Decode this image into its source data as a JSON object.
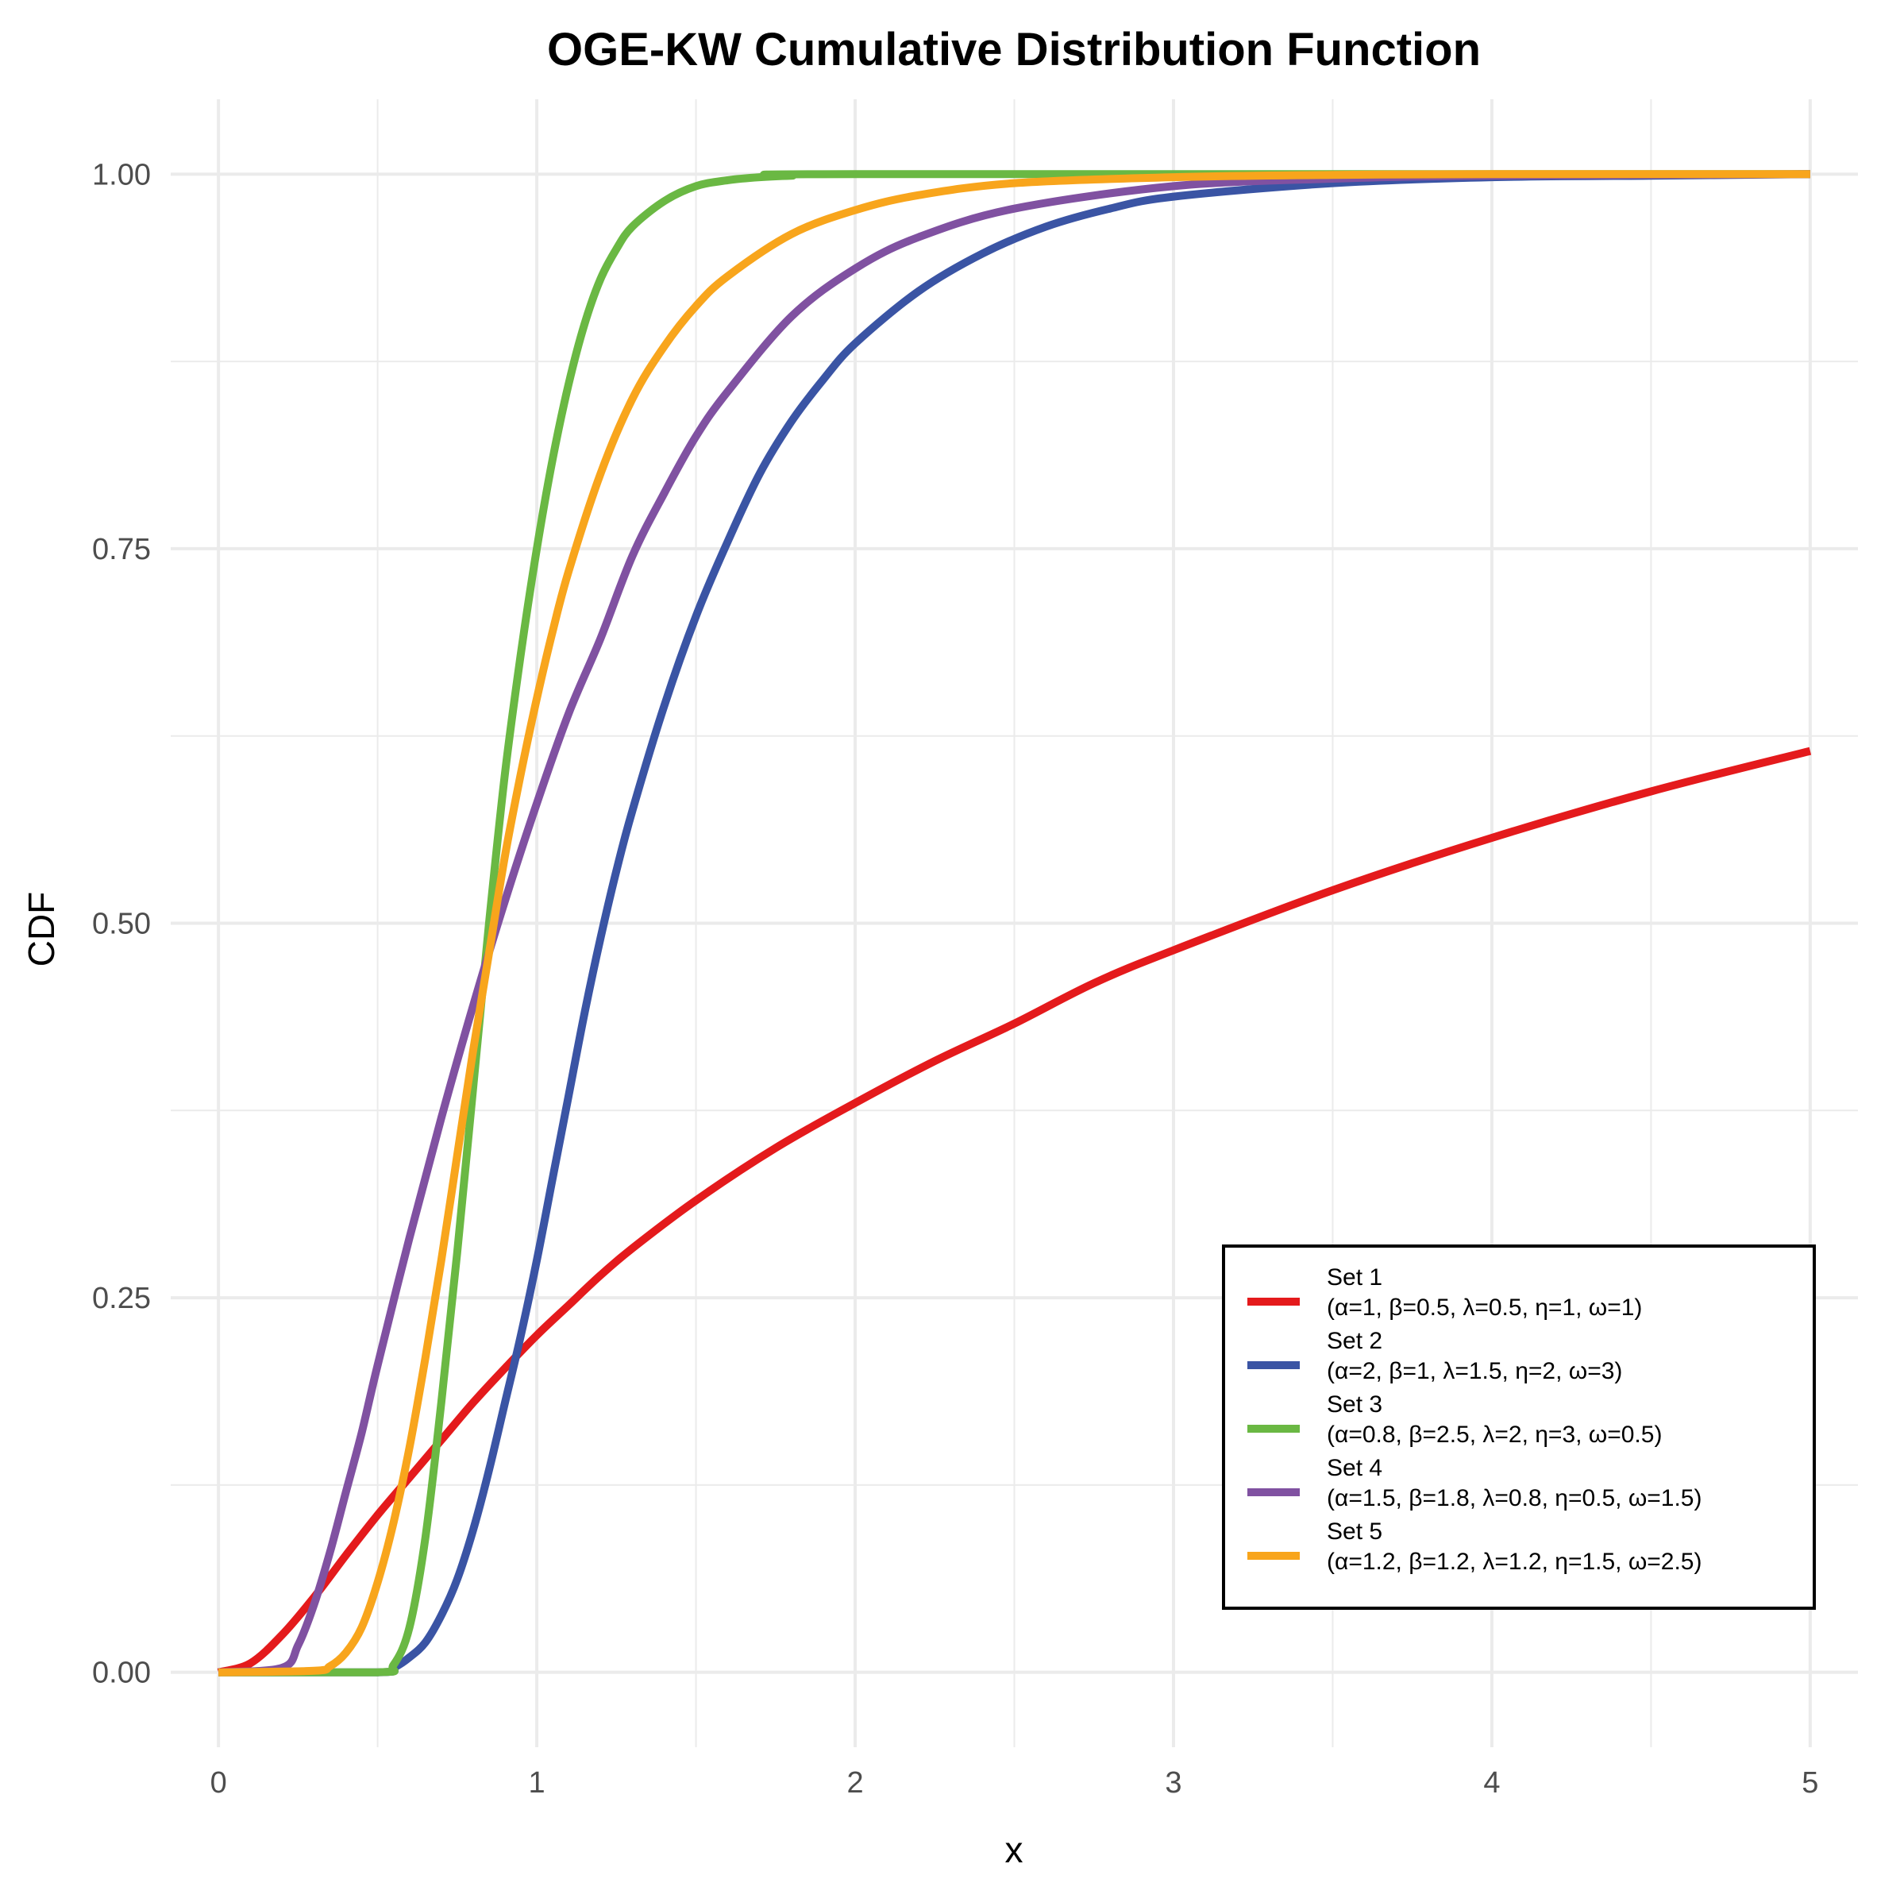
{
  "chart_data": {
    "type": "line",
    "title": "OGE-KW Cumulative Distribution Function",
    "xlabel": "x",
    "ylabel": "CDF",
    "xlim": [
      -0.15,
      5.15
    ],
    "ylim": [
      -0.05,
      1.05
    ],
    "x_ticks": [
      0,
      1,
      2,
      3,
      4,
      5
    ],
    "x_tick_labels": [
      "0",
      "1",
      "2",
      "3",
      "4",
      "5"
    ],
    "x_minor_ticks": [
      0.5,
      1.5,
      2.5,
      3.5,
      4.5
    ],
    "y_ticks": [
      0,
      0.25,
      0.5,
      0.75,
      1
    ],
    "y_tick_labels": [
      "0.00",
      "0.25",
      "0.50",
      "0.75",
      "1.00"
    ],
    "y_minor_ticks": [
      0.125,
      0.375,
      0.625,
      0.875
    ],
    "grid": true,
    "legend_position": "bottom-right",
    "series": [
      {
        "name": "Set 1",
        "params": "(α=1, β=0.5, λ=0.5, η=1, ω=1)",
        "color": "#E41A1C",
        "x": [
          0,
          0.1,
          0.2,
          0.3,
          0.4,
          0.5,
          0.6,
          0.7,
          0.8,
          0.9,
          1.0,
          1.1,
          1.2,
          1.3,
          1.5,
          1.75,
          2.0,
          2.25,
          2.5,
          2.75,
          3.0,
          3.5,
          4.0,
          4.5,
          5.0
        ],
        "y": [
          0,
          0.006,
          0.025,
          0.05,
          0.078,
          0.105,
          0.13,
          0.155,
          0.18,
          0.203,
          0.225,
          0.245,
          0.265,
          0.283,
          0.315,
          0.35,
          0.38,
          0.408,
          0.433,
          0.46,
          0.482,
          0.522,
          0.557,
          0.588,
          0.615
        ]
      },
      {
        "name": "Set 2",
        "params": "(α=2, β=1, λ=1.5, η=2, ω=3)",
        "color": "#3A54A4",
        "x": [
          0,
          0.5,
          0.55,
          0.6,
          0.65,
          0.7,
          0.75,
          0.8,
          0.85,
          0.9,
          0.95,
          1.0,
          1.05,
          1.1,
          1.15,
          1.2,
          1.25,
          1.3,
          1.4,
          1.5,
          1.6,
          1.7,
          1.8,
          1.9,
          2.0,
          2.2,
          2.4,
          2.6,
          2.8,
          3.0,
          3.5,
          4.0,
          4.5,
          5.0
        ],
        "y": [
          0,
          0,
          0.003,
          0.01,
          0.02,
          0.038,
          0.062,
          0.095,
          0.135,
          0.18,
          0.225,
          0.275,
          0.33,
          0.385,
          0.44,
          0.49,
          0.535,
          0.575,
          0.645,
          0.705,
          0.755,
          0.8,
          0.835,
          0.863,
          0.887,
          0.922,
          0.947,
          0.965,
          0.977,
          0.985,
          0.994,
          0.998,
          0.999,
          1.0
        ]
      },
      {
        "name": "Set 3",
        "params": "(α=0.8, β=2.5, λ=2, η=3, ω=0.5)",
        "color": "#6AB843",
        "x": [
          0,
          0.5,
          0.55,
          0.6,
          0.65,
          0.7,
          0.75,
          0.8,
          0.85,
          0.9,
          0.95,
          1.0,
          1.05,
          1.1,
          1.15,
          1.2,
          1.25,
          1.3,
          1.4,
          1.5,
          1.6,
          1.7,
          1.8,
          2.0,
          5.0
        ],
        "y": [
          0,
          0,
          0.005,
          0.03,
          0.09,
          0.18,
          0.28,
          0.39,
          0.5,
          0.6,
          0.68,
          0.75,
          0.81,
          0.86,
          0.9,
          0.93,
          0.95,
          0.965,
          0.982,
          0.992,
          0.996,
          0.998,
          0.999,
          1.0,
          1.0
        ]
      },
      {
        "name": "Set 4",
        "params": "(α=1.5, β=1.8, λ=0.8, η=0.5, ω=1.5)",
        "color": "#8051A1",
        "x": [
          0,
          0.2,
          0.25,
          0.3,
          0.35,
          0.4,
          0.45,
          0.5,
          0.6,
          0.7,
          0.8,
          0.9,
          1.0,
          1.1,
          1.2,
          1.3,
          1.4,
          1.5,
          1.6,
          1.8,
          2.0,
          2.2,
          2.5,
          3.0,
          3.5,
          4.0,
          5.0
        ],
        "y": [
          0,
          0.003,
          0.018,
          0.045,
          0.08,
          0.12,
          0.16,
          0.205,
          0.29,
          0.37,
          0.445,
          0.515,
          0.58,
          0.64,
          0.69,
          0.745,
          0.787,
          0.825,
          0.855,
          0.905,
          0.937,
          0.958,
          0.977,
          0.992,
          0.997,
          0.999,
          1.0
        ]
      },
      {
        "name": "Set 5",
        "params": "(α=1.2, β=1.2, λ=1.2, η=1.5, ω=2.5)",
        "color": "#F8A51C",
        "x": [
          0,
          0.3,
          0.35,
          0.4,
          0.45,
          0.5,
          0.55,
          0.6,
          0.65,
          0.7,
          0.75,
          0.8,
          0.85,
          0.9,
          0.95,
          1.0,
          1.05,
          1.1,
          1.2,
          1.3,
          1.4,
          1.5,
          1.6,
          1.8,
          2.0,
          2.2,
          2.5,
          3.0,
          3.5,
          4.0,
          5.0
        ],
        "y": [
          0,
          0.001,
          0.004,
          0.013,
          0.03,
          0.06,
          0.1,
          0.15,
          0.21,
          0.275,
          0.345,
          0.415,
          0.48,
          0.545,
          0.6,
          0.65,
          0.695,
          0.735,
          0.8,
          0.85,
          0.885,
          0.912,
          0.932,
          0.96,
          0.976,
          0.986,
          0.994,
          0.998,
          0.9995,
          1.0,
          1.0
        ]
      }
    ]
  }
}
